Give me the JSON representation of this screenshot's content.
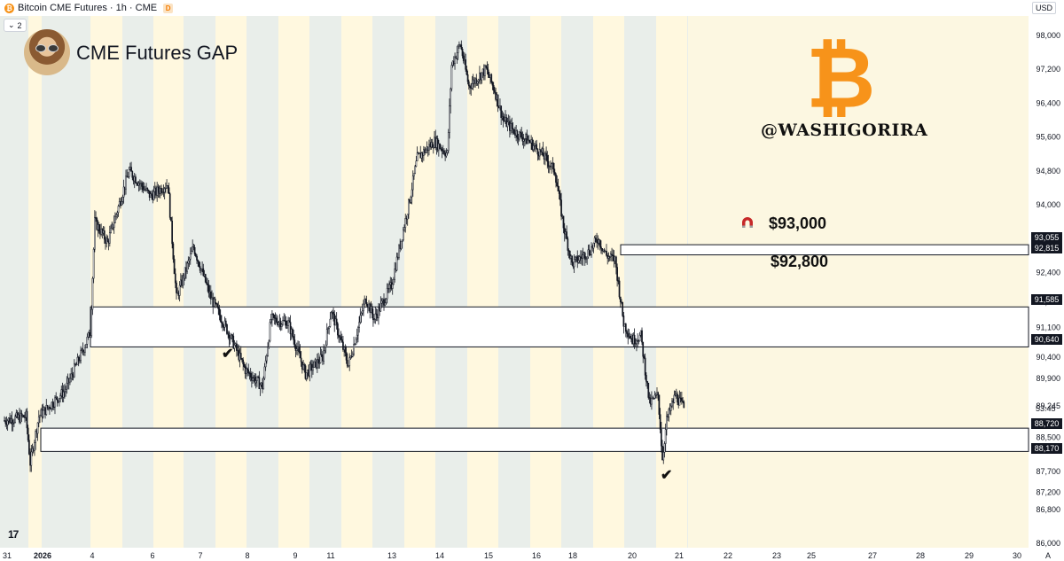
{
  "header": {
    "symbol": "Bitcoin CME Futures · 1h · CME",
    "symbol_icon": "bitcoin-icon",
    "delayed_badge": "D",
    "collapse_count": "2",
    "currency": "USD"
  },
  "annotations": {
    "title": "CME Futures GAP",
    "handle": "@WASHIGORIRA",
    "logo_glyph": "₿",
    "label_93000": "$93,000",
    "label_92800": "$92,800",
    "check_glyph": "✔",
    "tv_logo": "17"
  },
  "colors": {
    "candle": "#131722",
    "session_green": "#e9eeea",
    "session_yellow": "#fff8df",
    "future_area": "#fcf7e1",
    "bitcoin_orange": "#f7931a",
    "price_tag_bg": "#131722"
  },
  "chart_data": {
    "type": "candlestick",
    "title": "Bitcoin CME Futures · 1h · CME",
    "ylabel": "USD",
    "ylim": [
      85800,
      98400
    ],
    "y_ticks": [
      98000,
      97200,
      96400,
      95600,
      94800,
      94000,
      93200,
      92400,
      91700,
      91100,
      90400,
      89900,
      89245,
      88500,
      87700,
      87200,
      86800,
      86000
    ],
    "y_tick_labels": [
      "98,000",
      "97,200",
      "96,400",
      "95,600",
      "94,800",
      "94,000",
      "93,200",
      "92,400",
      "91,700",
      "91,100",
      "90,400",
      "89,900",
      "89,245",
      "88,500",
      "87,700",
      "87,200",
      "86,800",
      "86,000"
    ],
    "x_tick_labels": [
      "31",
      "2026",
      "4",
      "6",
      "7",
      "8",
      "9",
      "11",
      "13",
      "14",
      "15",
      "16",
      "18",
      "20",
      "21",
      "22",
      "23",
      "25",
      "27",
      "28",
      "29",
      "30"
    ],
    "price_tags": [
      "93,055",
      "92,815",
      "91,585",
      "90,640",
      "88,720",
      "88,170"
    ],
    "countdown": "53:45",
    "gap_zones": [
      {
        "low": 92815,
        "high": 93055
      },
      {
        "low": 90640,
        "high": 91585
      },
      {
        "low": 88170,
        "high": 88720
      }
    ],
    "path": [
      {
        "t": 0,
        "p": 88900
      },
      {
        "t": 2.5,
        "p": 89000
      },
      {
        "t": 3,
        "p": 87900
      },
      {
        "t": 4,
        "p": 89000
      },
      {
        "t": 7,
        "p": 89600
      },
      {
        "t": 9,
        "p": 90500
      },
      {
        "t": 10,
        "p": 91000
      },
      {
        "t": 10.5,
        "p": 93600
      },
      {
        "t": 12,
        "p": 93100
      },
      {
        "t": 14.5,
        "p": 94800
      },
      {
        "t": 17,
        "p": 94200
      },
      {
        "t": 19,
        "p": 94500
      },
      {
        "t": 20,
        "p": 91800
      },
      {
        "t": 22,
        "p": 93000
      },
      {
        "t": 24,
        "p": 91800
      },
      {
        "t": 26,
        "p": 91000
      },
      {
        "t": 28,
        "p": 90100
      },
      {
        "t": 30,
        "p": 89700
      },
      {
        "t": 31,
        "p": 91300
      },
      {
        "t": 33,
        "p": 91200
      },
      {
        "t": 35,
        "p": 90000
      },
      {
        "t": 37,
        "p": 90400
      },
      {
        "t": 38,
        "p": 91500
      },
      {
        "t": 40,
        "p": 90200
      },
      {
        "t": 42,
        "p": 91800
      },
      {
        "t": 43,
        "p": 91300
      },
      {
        "t": 45,
        "p": 92100
      },
      {
        "t": 47,
        "p": 94000
      },
      {
        "t": 48,
        "p": 95100
      },
      {
        "t": 50,
        "p": 95500
      },
      {
        "t": 51.5,
        "p": 95200
      },
      {
        "t": 52,
        "p": 97300
      },
      {
        "t": 53,
        "p": 97800
      },
      {
        "t": 54,
        "p": 96800
      },
      {
        "t": 56,
        "p": 97200
      },
      {
        "t": 57,
        "p": 96700
      },
      {
        "t": 58,
        "p": 96000
      },
      {
        "t": 59.5,
        "p": 95700
      },
      {
        "t": 61,
        "p": 95500
      },
      {
        "t": 62.5,
        "p": 95200
      },
      {
        "t": 64,
        "p": 94800
      },
      {
        "t": 65,
        "p": 93500
      },
      {
        "t": 66,
        "p": 92600
      },
      {
        "t": 68,
        "p": 92900
      },
      {
        "t": 69,
        "p": 93200
      },
      {
        "t": 70,
        "p": 92800
      },
      {
        "t": 71,
        "p": 92700
      },
      {
        "t": 72,
        "p": 91200
      },
      {
        "t": 73,
        "p": 90800
      },
      {
        "t": 74,
        "p": 90900
      },
      {
        "t": 75,
        "p": 89300
      },
      {
        "t": 76,
        "p": 89500
      },
      {
        "t": 76.5,
        "p": 88000
      },
      {
        "t": 77,
        "p": 88900
      },
      {
        "t": 78,
        "p": 89500
      },
      {
        "t": 79,
        "p": 89200
      }
    ]
  }
}
